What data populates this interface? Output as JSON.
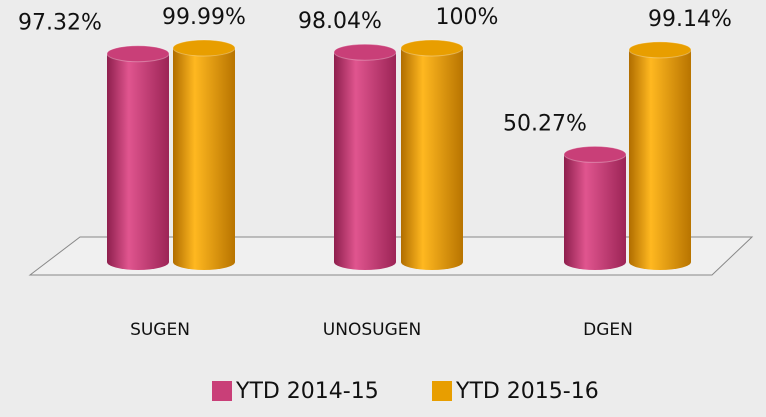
{
  "chart_data": {
    "type": "bar",
    "categories": [
      "SUGEN",
      "UNOSUGEN",
      "DGEN"
    ],
    "series": [
      {
        "name": "YTD 2014-15",
        "color": "#c93f78",
        "values": [
          97.32,
          98.04,
          50.27
        ],
        "value_labels": [
          "97.32%",
          "98.04%",
          "50.27%"
        ]
      },
      {
        "name": "YTD 2015-16",
        "color": "#e89e00",
        "values": [
          99.99,
          100,
          99.14
        ],
        "value_labels": [
          "99.99%",
          "100%",
          "99.14%"
        ]
      }
    ]
  }
}
